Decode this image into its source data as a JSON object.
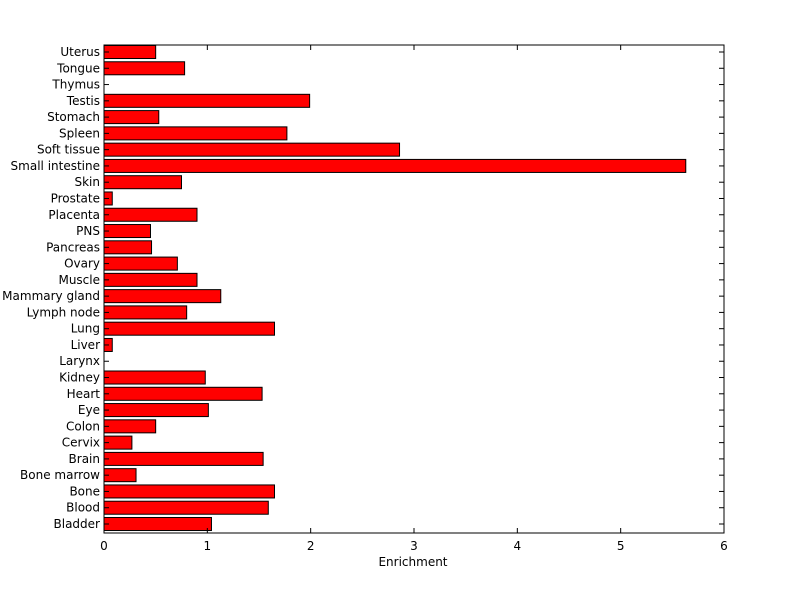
{
  "chart_data": {
    "type": "bar",
    "orientation": "horizontal",
    "categories": [
      "Bladder",
      "Blood",
      "Bone",
      "Bone marrow",
      "Brain",
      "Cervix",
      "Colon",
      "Eye",
      "Heart",
      "Kidney",
      "Larynx",
      "Liver",
      "Lung",
      "Lymph node",
      "Mammary gland",
      "Muscle",
      "Ovary",
      "Pancreas",
      "PNS",
      "Placenta",
      "Prostate",
      "Skin",
      "Small intestine",
      "Soft tissue",
      "Spleen",
      "Stomach",
      "Testis",
      "Thymus",
      "Tongue",
      "Uterus"
    ],
    "values": [
      1.04,
      1.59,
      1.65,
      0.31,
      1.54,
      0.27,
      0.5,
      1.01,
      1.53,
      0.98,
      0.0,
      0.08,
      1.65,
      0.8,
      1.13,
      0.9,
      0.71,
      0.46,
      0.45,
      0.9,
      0.08,
      0.75,
      5.63,
      2.86,
      1.77,
      0.53,
      1.99,
      0.0,
      0.78,
      0.5
    ],
    "xlabel": "Enrichment",
    "ylabel": "",
    "title": "",
    "xlim": [
      0,
      6
    ],
    "xticks": [
      0,
      1,
      2,
      3,
      4,
      5,
      6
    ],
    "bar_color": "#ff0000",
    "edge_color": "#000000",
    "grid": false,
    "legend": "none"
  }
}
